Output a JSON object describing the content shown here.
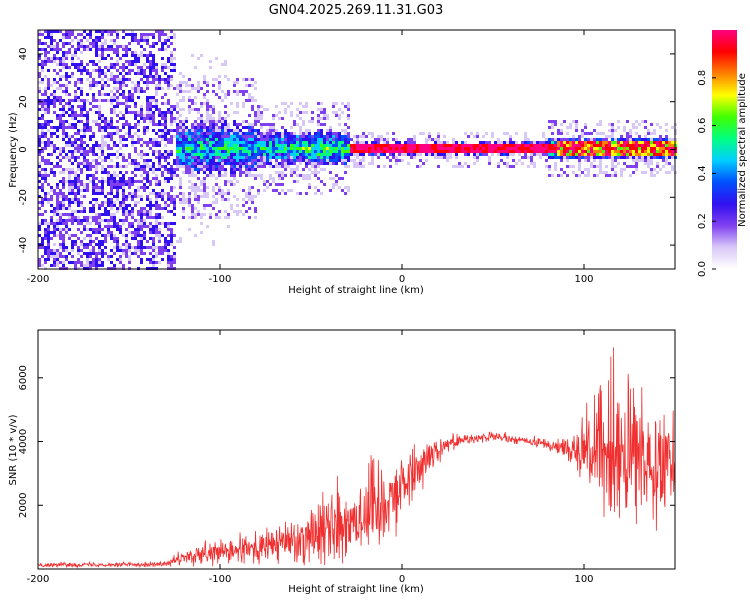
{
  "title": "GN04.2025.269.11.31.G03",
  "chart_data": [
    {
      "type": "heatmap",
      "xlabel": "Height of straight line (km)",
      "ylabel": "Frequency (Hz)",
      "xlim": [
        -200,
        150
      ],
      "ylim": [
        -50,
        50
      ],
      "x_ticks": [
        -200,
        -100,
        0,
        100
      ],
      "y_ticks": [
        -40,
        -20,
        0,
        20,
        40
      ],
      "colorbar": {
        "label": "Normalized spectral amplitude",
        "range": [
          0,
          1
        ],
        "ticks": [
          "0.0",
          "0.2",
          "0.4",
          "0.6",
          "0.8"
        ],
        "colors": [
          "#ffffff",
          "#d8c8f8",
          "#8040f0",
          "#3010f0",
          "#0050ff",
          "#00d0ff",
          "#00ff80",
          "#40ff00",
          "#ffff00",
          "#ff8000",
          "#ff0000",
          "#ff0080"
        ]
      },
      "description_points": {
        "noise_region_km": [
          -200,
          -125
        ],
        "signal_center_hz": 1,
        "signal_onset_km": -125,
        "strong_line_km": [
          -30,
          150
        ]
      }
    },
    {
      "type": "line",
      "xlabel": "Height of straight line (km)",
      "ylabel": "SNR (10 * v/v)",
      "xlim": [
        -200,
        150
      ],
      "ylim": [
        0,
        7500
      ],
      "x_ticks": [
        -200,
        -100,
        0,
        100
      ],
      "y_ticks": [
        2000,
        4000,
        6000
      ],
      "line_color": "#f03030",
      "series": [
        {
          "name": "SNR",
          "envelope": [
            {
              "x": -200,
              "mean": 130,
              "spread": 60
            },
            {
              "x": -130,
              "mean": 150,
              "spread": 80
            },
            {
              "x": -120,
              "mean": 350,
              "spread": 250
            },
            {
              "x": -100,
              "mean": 500,
              "spread": 400
            },
            {
              "x": -80,
              "mean": 650,
              "spread": 500
            },
            {
              "x": -60,
              "mean": 900,
              "spread": 700
            },
            {
              "x": -40,
              "mean": 1350,
              "spread": 1200
            },
            {
              "x": -20,
              "mean": 1750,
              "spread": 1600
            },
            {
              "x": 0,
              "mean": 2600,
              "spread": 1000
            },
            {
              "x": 15,
              "mean": 3600,
              "spread": 500
            },
            {
              "x": 30,
              "mean": 4050,
              "spread": 180
            },
            {
              "x": 50,
              "mean": 4150,
              "spread": 150
            },
            {
              "x": 70,
              "mean": 4000,
              "spread": 140
            },
            {
              "x": 85,
              "mean": 3850,
              "spread": 250
            },
            {
              "x": 95,
              "mean": 3800,
              "spread": 600
            },
            {
              "x": 105,
              "mean": 3700,
              "spread": 1500
            },
            {
              "x": 115,
              "mean": 3600,
              "spread": 2500
            },
            {
              "x": 130,
              "mean": 3500,
              "spread": 1900
            },
            {
              "x": 150,
              "mean": 3500,
              "spread": 1500
            }
          ]
        }
      ]
    }
  ]
}
